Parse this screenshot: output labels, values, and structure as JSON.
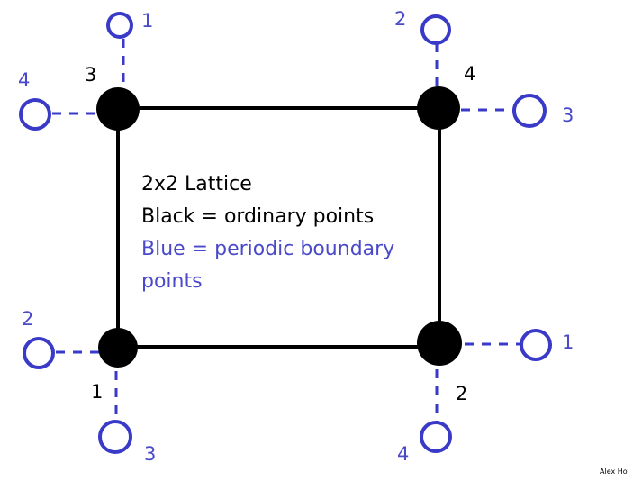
{
  "caption": {
    "line1": "2x2 Lattice",
    "line2": "Black = ordinary points",
    "line3": "Blue = periodic boundary",
    "line4": "points"
  },
  "ordinary_points": {
    "bottom_left": "1",
    "bottom_right": "2",
    "top_left": "3",
    "top_right": "4"
  },
  "boundary_points": {
    "top_left_up": "1",
    "top_left_left": "4",
    "top_right_up": "2",
    "top_right_right": "3",
    "bottom_left_left": "2",
    "bottom_left_down": "3",
    "bottom_right_right": "1",
    "bottom_right_down": "4"
  },
  "credit": "Alex Ho",
  "colors": {
    "ordinary": "#000000",
    "boundary": "#4a4ac8"
  }
}
